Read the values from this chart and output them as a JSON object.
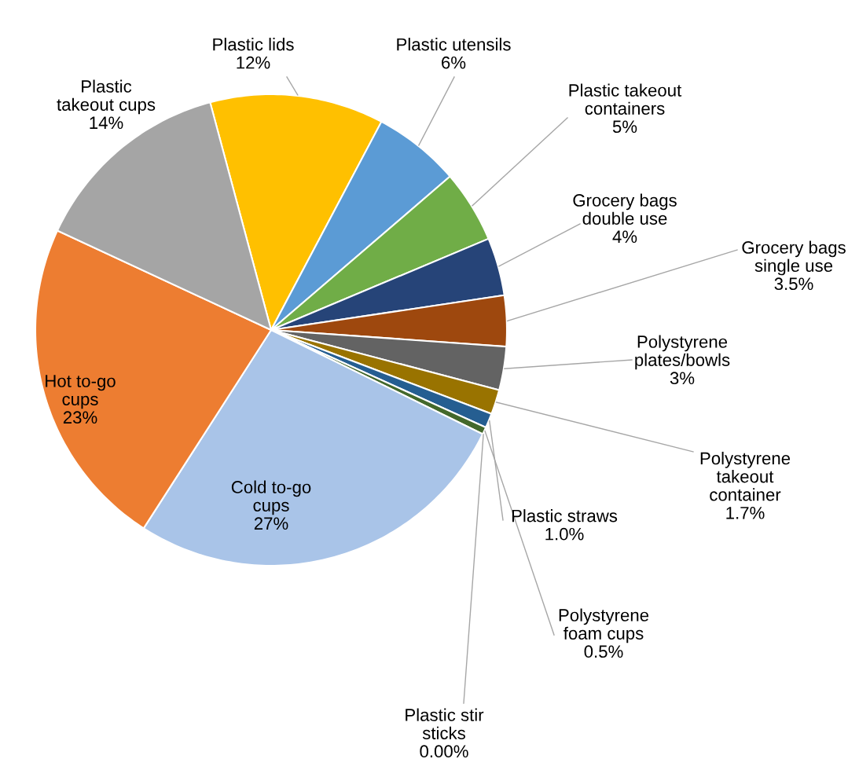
{
  "chart_data": {
    "type": "pie",
    "categories": [
      "Plastic lids",
      "Plastic utensils",
      "Plastic takeout\ncontainers",
      "Grocery bags\ndouble use",
      "Grocery bags\nsingle use",
      "Polystyrene\nplates/bowls",
      "Polystyrene\ntakeout\ncontainer",
      "Plastic straws",
      "Polystyrene\nfoam cups",
      "Plastic stir\nsticks",
      "Cold to-go\ncups",
      "Hot to-go\ncups",
      "Plastic\ntakeout cups"
    ],
    "values": [
      12,
      6,
      5,
      4,
      3.5,
      3,
      1.7,
      1.0,
      0.5,
      0.0,
      27,
      23,
      14
    ],
    "value_labels": [
      "12%",
      "6%",
      "5%",
      "4%",
      "3.5%",
      "3%",
      "1.7%",
      "1.0%",
      "0.5%",
      "0.00%",
      "27%",
      "23%",
      "14%"
    ],
    "colors": [
      "#ffc000",
      "#5b9bd5",
      "#70ad47",
      "#264478",
      "#9e480e",
      "#636363",
      "#997300",
      "#255e91",
      "#43682b",
      "#698ed0",
      "#a9c4e8",
      "#ed7d31",
      "#a5a5a5"
    ]
  }
}
